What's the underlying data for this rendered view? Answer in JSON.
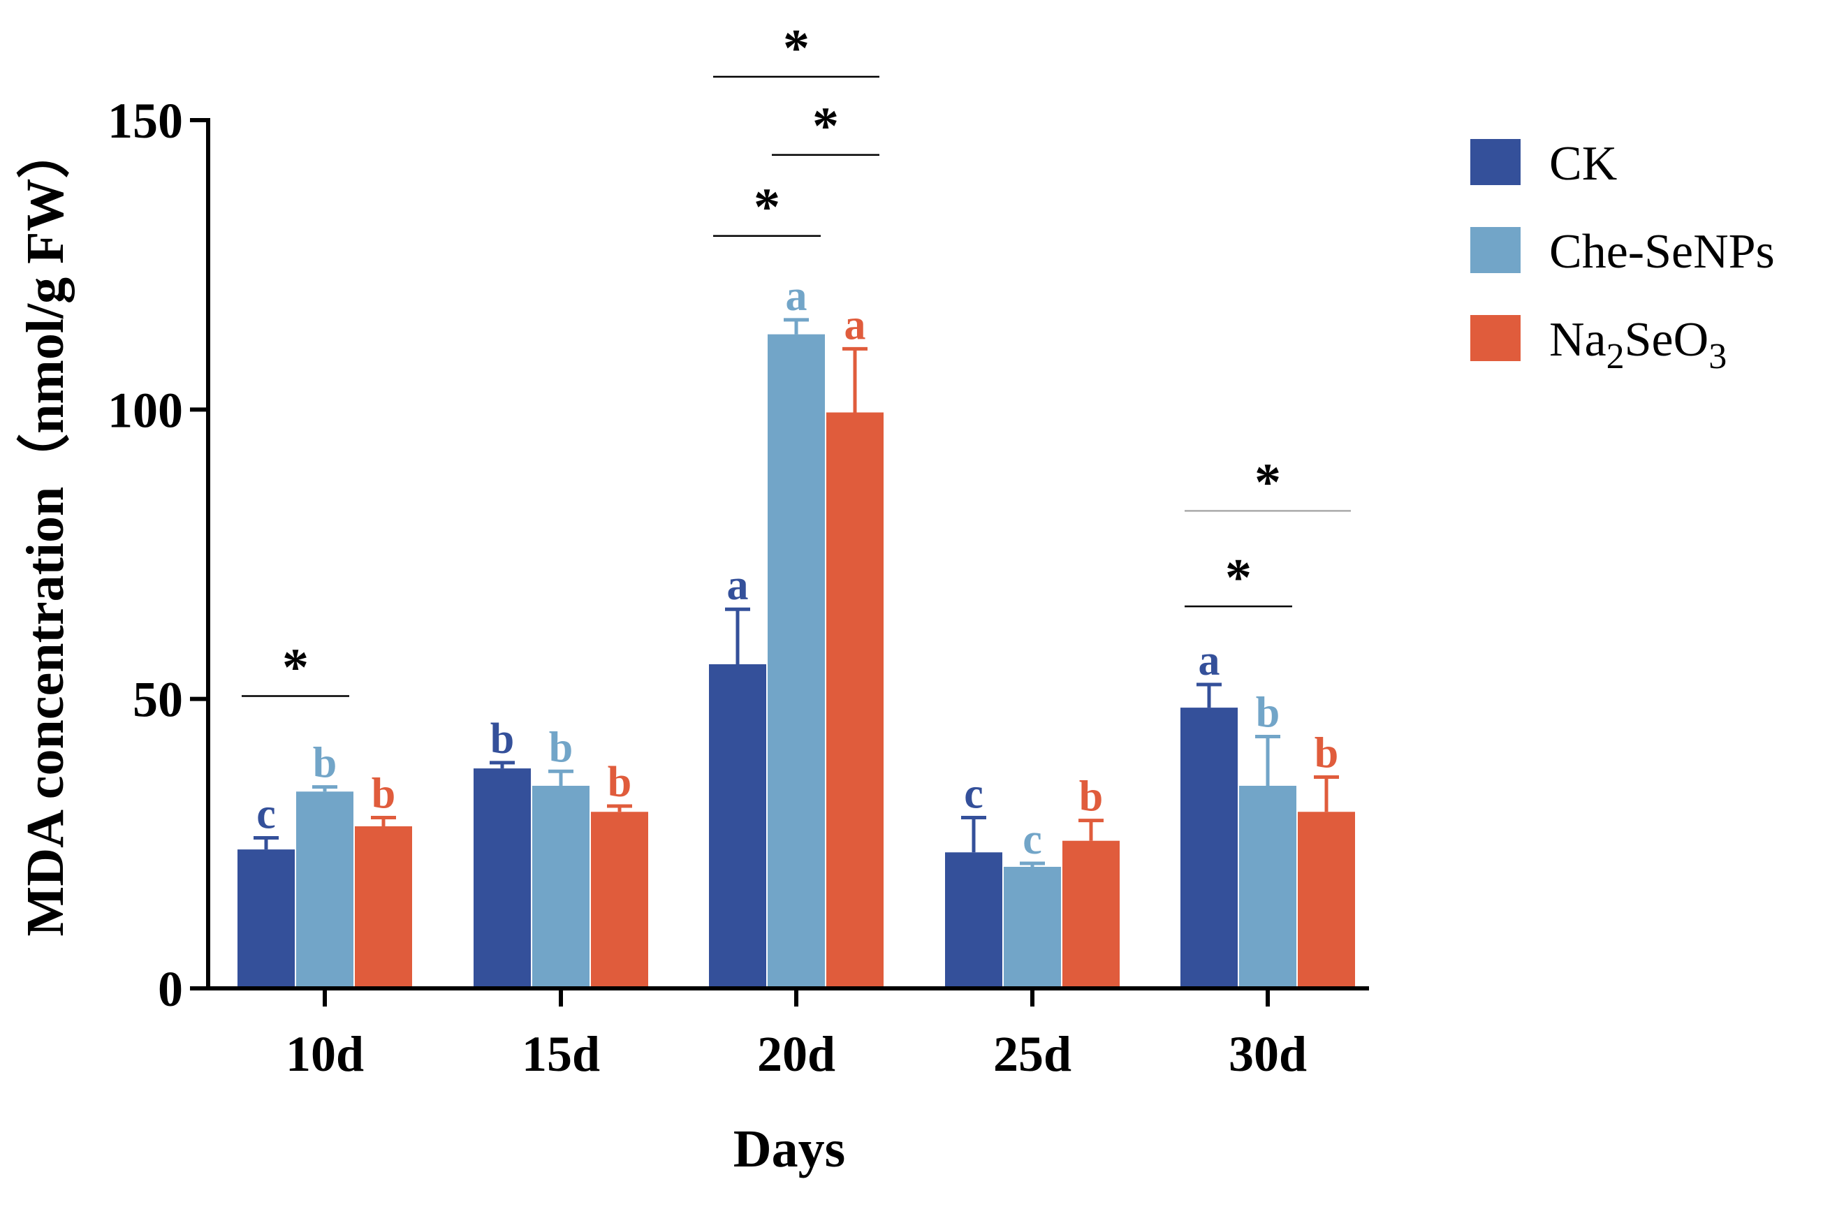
{
  "chart_data": {
    "type": "bar",
    "xlabel": "Days",
    "ylabel": "MDA concentration（nmol/g FW）",
    "ylim": [
      0,
      150
    ],
    "yticks": [
      0,
      50,
      100,
      150
    ],
    "categories": [
      "10d",
      "15d",
      "20d",
      "25d",
      "30d"
    ],
    "series": [
      {
        "name": "CK",
        "color": "#34509a",
        "values": [
          24,
          38,
          56,
          23.5,
          48.5
        ],
        "errors": [
          2,
          1,
          9.5,
          6,
          4
        ],
        "letters": [
          "c",
          "b",
          "a",
          "c",
          "a"
        ]
      },
      {
        "name": "Che-SeNPs",
        "color": "#72a5c8",
        "values": [
          34,
          35,
          113,
          21,
          35
        ],
        "errors": [
          0.8,
          2.5,
          2.5,
          0.6,
          8.5
        ],
        "letters": [
          "b",
          "b",
          "a",
          "c",
          "b"
        ]
      },
      {
        "name": "Na2SeO3",
        "color": "#e05c3c",
        "legend_parts": [
          "Na",
          "2",
          "SeO",
          "3"
        ],
        "values": [
          28,
          30.5,
          99.5,
          25.5,
          30.5
        ],
        "errors": [
          1.5,
          1,
          11,
          3.5,
          6
        ],
        "letters": [
          "b",
          "b",
          "a",
          "b",
          "b"
        ]
      }
    ],
    "significance": [
      {
        "category": 0,
        "from": 0,
        "to": 1,
        "y": 50.5,
        "label": "*",
        "color": "#000000"
      },
      {
        "category": 2,
        "from": 0,
        "to": 1,
        "y": 130,
        "label": "*",
        "color": "#000000"
      },
      {
        "category": 2,
        "from": 1,
        "to": 2,
        "y": 144,
        "label": "*",
        "color": "#000000"
      },
      {
        "category": 2,
        "from": 0,
        "to": 2,
        "y": 157.5,
        "label": "*",
        "color": "#000000"
      },
      {
        "category": 4,
        "from": 0,
        "to": 1,
        "y": 66,
        "label": "*",
        "color": "#000000"
      },
      {
        "category": 4,
        "from": 0,
        "to": 2,
        "y": 82.5,
        "label": "*",
        "color": "#aaaaaa"
      }
    ],
    "legend_position": "top-right"
  }
}
